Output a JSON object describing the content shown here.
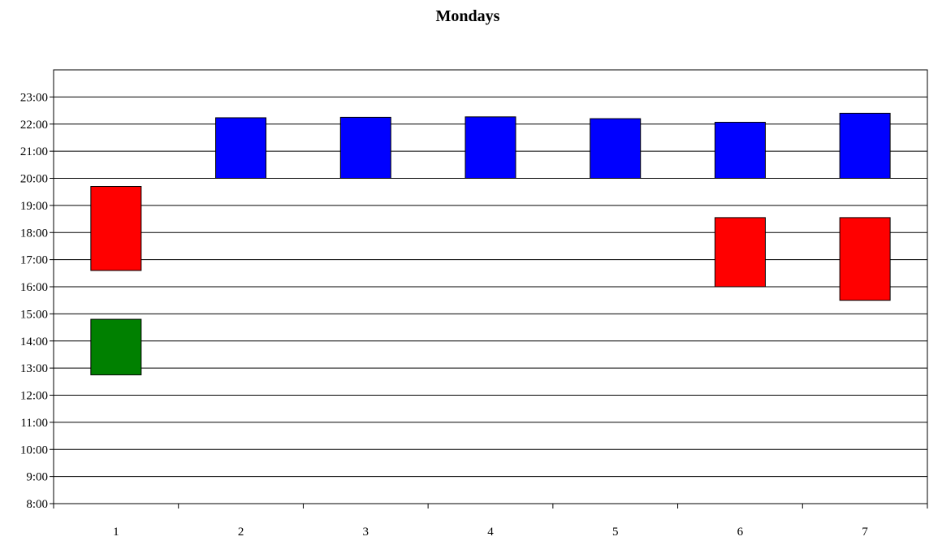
{
  "chart_data": {
    "type": "bar",
    "subtype": "floating-range",
    "title": "Mondays",
    "xlabel": "",
    "ylabel": "",
    "categories": [
      "1",
      "2",
      "3",
      "4",
      "5",
      "6",
      "7"
    ],
    "y_ticks": [
      "8:00",
      "9:00",
      "10:00",
      "11:00",
      "12:00",
      "13:00",
      "14:00",
      "15:00",
      "16:00",
      "17:00",
      "18:00",
      "19:00",
      "20:00",
      "21:00",
      "22:00",
      "23:00"
    ],
    "ylim": [
      "8:00",
      "24:00"
    ],
    "grid": true,
    "legend": "none",
    "series": [
      {
        "color": "#008000",
        "ranges": [
          {
            "category": "1",
            "start": "12:45",
            "end": "14:48"
          }
        ]
      },
      {
        "color": "#ff0000",
        "ranges": [
          {
            "category": "1",
            "start": "16:36",
            "end": "19:42"
          },
          {
            "category": "6",
            "start": "16:00",
            "end": "18:33"
          },
          {
            "category": "7",
            "start": "15:30",
            "end": "18:33"
          }
        ]
      },
      {
        "color": "#0000ff",
        "ranges": [
          {
            "category": "2",
            "start": "20:00",
            "end": "22:14"
          },
          {
            "category": "3",
            "start": "20:00",
            "end": "22:15"
          },
          {
            "category": "4",
            "start": "20:00",
            "end": "22:16"
          },
          {
            "category": "5",
            "start": "20:00",
            "end": "22:12"
          },
          {
            "category": "6",
            "start": "20:00",
            "end": "22:04"
          },
          {
            "category": "7",
            "start": "20:00",
            "end": "22:24"
          }
        ]
      }
    ]
  }
}
